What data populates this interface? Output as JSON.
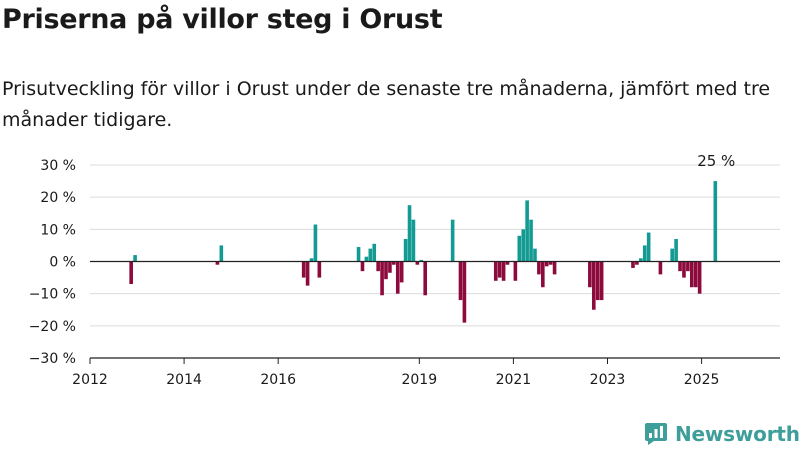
{
  "title": "Priserna på villor steg i Orust",
  "subtitle": "Prisutveckling för villor i Orust under de senaste tre månaderna, jämfört med tre månader tidigare.",
  "brand": {
    "name": "Newsworthy",
    "icon": "newsworthy-logo-icon"
  },
  "colors": {
    "positive": "#139b93",
    "negative": "#8c0a3c",
    "zero_line": "#222222",
    "grid": "#dcdcdc",
    "text": "#1a1a1a",
    "brand": "#3d9e9a"
  },
  "chart_data": {
    "type": "bar",
    "title": "",
    "xlabel": "",
    "ylabel": "",
    "y_unit": "%",
    "ylim": [
      -30,
      30
    ],
    "y_ticks": [
      30,
      20,
      10,
      0,
      -10,
      -20,
      -30
    ],
    "y_tick_labels": [
      "30 %",
      "20 %",
      "10 %",
      "0 %",
      "−10 %",
      "−20 %",
      "−30 %"
    ],
    "xlim": [
      "2012-01",
      "2026-09"
    ],
    "x_ticks": [
      "2012-01",
      "2014-01",
      "2016-01",
      "2019-01",
      "2021-01",
      "2023-01",
      "2025-01"
    ],
    "x_tick_labels": [
      "2012",
      "2014",
      "2016",
      "2019",
      "2021",
      "2023",
      "2025"
    ],
    "grid": "horizontal",
    "legend": "none",
    "annotation": {
      "date": "2025-04",
      "value": 25,
      "label": "25 %"
    },
    "series": [
      {
        "values": [
          {
            "x": "2012-11",
            "y": -7
          },
          {
            "x": "2012-12",
            "y": 2
          },
          {
            "x": "2014-09",
            "y": -1
          },
          {
            "x": "2014-10",
            "y": 5
          },
          {
            "x": "2016-07",
            "y": -5
          },
          {
            "x": "2016-08",
            "y": -7.5
          },
          {
            "x": "2016-09",
            "y": 1
          },
          {
            "x": "2016-10",
            "y": 11.5
          },
          {
            "x": "2016-11",
            "y": -5
          },
          {
            "x": "2017-09",
            "y": 4.5
          },
          {
            "x": "2017-10",
            "y": -3
          },
          {
            "x": "2017-11",
            "y": 1.5
          },
          {
            "x": "2017-12",
            "y": 4
          },
          {
            "x": "2018-01",
            "y": 5.5
          },
          {
            "x": "2018-02",
            "y": -3
          },
          {
            "x": "2018-03",
            "y": -10.5
          },
          {
            "x": "2018-04",
            "y": -5.5
          },
          {
            "x": "2018-05",
            "y": -3.5
          },
          {
            "x": "2018-06",
            "y": -1
          },
          {
            "x": "2018-07",
            "y": -10
          },
          {
            "x": "2018-08",
            "y": -6.5
          },
          {
            "x": "2018-09",
            "y": 7
          },
          {
            "x": "2018-10",
            "y": 17.5
          },
          {
            "x": "2018-11",
            "y": 13
          },
          {
            "x": "2018-12",
            "y": -1
          },
          {
            "x": "2019-01",
            "y": 0.5
          },
          {
            "x": "2019-02",
            "y": -10.5
          },
          {
            "x": "2019-09",
            "y": 13
          },
          {
            "x": "2019-11",
            "y": -12
          },
          {
            "x": "2019-12",
            "y": -19
          },
          {
            "x": "2020-08",
            "y": -6
          },
          {
            "x": "2020-09",
            "y": -5
          },
          {
            "x": "2020-10",
            "y": -6
          },
          {
            "x": "2020-11",
            "y": -1
          },
          {
            "x": "2021-01",
            "y": -6
          },
          {
            "x": "2021-02",
            "y": 8
          },
          {
            "x": "2021-03",
            "y": 10
          },
          {
            "x": "2021-04",
            "y": 19
          },
          {
            "x": "2021-05",
            "y": 13
          },
          {
            "x": "2021-06",
            "y": 4
          },
          {
            "x": "2021-07",
            "y": -4
          },
          {
            "x": "2021-08",
            "y": -8
          },
          {
            "x": "2021-09",
            "y": -1.5
          },
          {
            "x": "2021-10",
            "y": -1
          },
          {
            "x": "2021-11",
            "y": -4
          },
          {
            "x": "2022-08",
            "y": -8
          },
          {
            "x": "2022-09",
            "y": -15
          },
          {
            "x": "2022-10",
            "y": -12
          },
          {
            "x": "2022-11",
            "y": -12
          },
          {
            "x": "2023-07",
            "y": -2
          },
          {
            "x": "2023-08",
            "y": -1
          },
          {
            "x": "2023-09",
            "y": 1
          },
          {
            "x": "2023-10",
            "y": 5
          },
          {
            "x": "2023-11",
            "y": 9
          },
          {
            "x": "2024-02",
            "y": -4
          },
          {
            "x": "2024-05",
            "y": 4
          },
          {
            "x": "2024-06",
            "y": 7
          },
          {
            "x": "2024-07",
            "y": -3
          },
          {
            "x": "2024-08",
            "y": -5
          },
          {
            "x": "2024-09",
            "y": -3
          },
          {
            "x": "2024-10",
            "y": -8
          },
          {
            "x": "2024-11",
            "y": -8
          },
          {
            "x": "2024-12",
            "y": -10
          },
          {
            "x": "2025-04",
            "y": 25
          }
        ]
      }
    ]
  }
}
